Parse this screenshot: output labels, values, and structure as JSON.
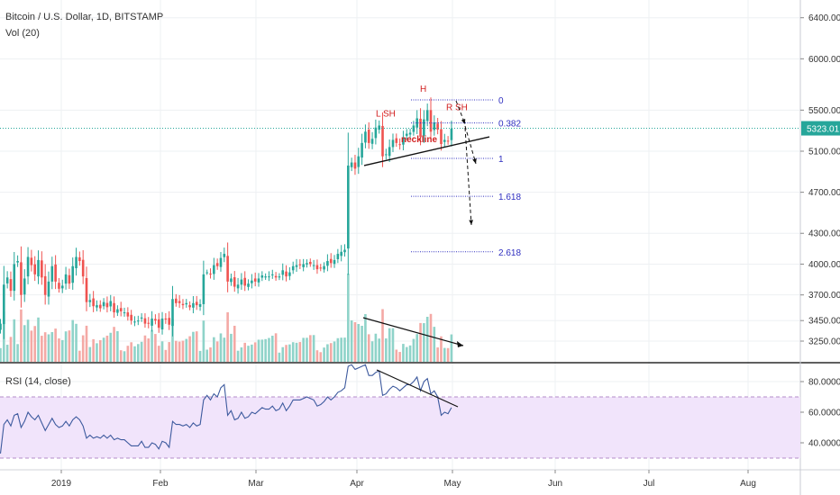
{
  "header": {
    "title": "Bitcoin / U.S. Dollar, 1D, BITSTAMP",
    "volume_legend": "Vol (20)",
    "rsi_legend": "RSI (14, close)"
  },
  "colors": {
    "up": "#26a69a",
    "down": "#ef5350",
    "vol_up": "#8fd3c9",
    "vol_down": "#f4a9a5",
    "price_line": "#26a69a",
    "price_tag_bg": "#26a69a",
    "fib": "#3030c0",
    "annotation_red": "#d11f1f",
    "rsi_line": "#3d5a9e",
    "rsi_band": "#f1e4fb"
  },
  "price_axis": {
    "ticks": [
      "6400.00",
      "6000.00",
      "5500.00",
      "5100.00",
      "4700.00",
      "4300.00",
      "4000.00",
      "3700.00",
      "3450.00",
      "3250.00"
    ],
    "current_price": "5323.01"
  },
  "rsi_axis": {
    "ticks": [
      "80.0000",
      "60.0000",
      "40.0000"
    ]
  },
  "time_axis": {
    "labels": [
      "2019",
      "Feb",
      "Mar",
      "Apr",
      "May",
      "Jun",
      "Jul",
      "Aug"
    ]
  },
  "annotations": {
    "head": "H",
    "left_shoulder": "L SH",
    "right_shoulder": "R SH",
    "neckline": "neckline"
  },
  "fib_levels": [
    "0",
    "0.382",
    "1",
    "1.618",
    "2.618"
  ],
  "chart_data": {
    "type": "candlestick",
    "title": "Bitcoin / U.S. Dollar, 1D, BITSTAMP",
    "x_range": [
      "Dec 2018",
      "Aug 2019"
    ],
    "price_ylim": [
      3130,
      6530
    ],
    "rsi_ylim": [
      25,
      95
    ],
    "rsi_bands": [
      30,
      70
    ],
    "candles_close": [
      3420,
      3800,
      3870,
      3740,
      4000,
      4030,
      3700,
      3860,
      4070,
      3990,
      3900,
      4040,
      3870,
      3700,
      3830,
      3980,
      3830,
      3760,
      3790,
      3900,
      3810,
      3980,
      4070,
      4030,
      3880,
      3630,
      3650,
      3590,
      3600,
      3570,
      3630,
      3580,
      3640,
      3530,
      3560,
      3540,
      3530,
      3490,
      3450,
      3440,
      3450,
      3480,
      3420,
      3420,
      3470,
      3450,
      3380,
      3470,
      3460,
      3410,
      3660,
      3620,
      3620,
      3600,
      3620,
      3580,
      3620,
      3600,
      3610,
      3900,
      3920,
      3900,
      3990,
      3980,
      4060,
      4100,
      3830,
      3860,
      3780,
      3800,
      3850,
      3790,
      3810,
      3840,
      3830,
      3860,
      3890,
      3880,
      3880,
      3900,
      3870,
      3880,
      3940,
      3880,
      3920,
      3980,
      3990,
      3990,
      4000,
      4010,
      4000,
      3990,
      3950,
      3960,
      3980,
      4030,
      4010,
      4040,
      4100,
      4120,
      4140,
      4960,
      4990,
      4930,
      5050,
      5180,
      5290,
      5180,
      5220,
      5330,
      5350,
      5050,
      5070,
      5140,
      5210,
      5180,
      5160,
      5230,
      5270,
      5280,
      5350,
      5420,
      5240,
      5410,
      5500,
      5290,
      5380,
      5310,
      5170,
      5210,
      5200,
      5320
    ],
    "rsi_values": [
      33,
      52,
      55,
      51,
      58,
      59,
      50,
      54,
      60,
      57,
      55,
      58,
      53,
      48,
      52,
      56,
      52,
      50,
      51,
      54,
      51,
      55,
      57,
      55,
      51,
      43,
      45,
      43,
      44,
      43,
      45,
      43,
      45,
      42,
      43,
      42,
      42,
      40,
      38,
      38,
      38,
      41,
      37,
      37,
      40,
      39,
      36,
      41,
      40,
      37,
      54,
      52,
      52,
      51,
      52,
      50,
      53,
      51,
      52,
      68,
      71,
      68,
      72,
      70,
      76,
      78,
      58,
      61,
      55,
      56,
      60,
      56,
      57,
      60,
      59,
      61,
      63,
      62,
      62,
      64,
      61,
      62,
      66,
      61,
      64,
      68,
      68,
      68,
      69,
      70,
      69,
      68,
      64,
      65,
      67,
      70,
      68,
      70,
      73,
      74,
      76,
      90,
      91,
      88,
      89,
      90,
      91,
      84,
      84,
      86,
      87,
      71,
      72,
      75,
      77,
      76,
      74,
      76,
      78,
      78,
      80,
      83,
      74,
      80,
      82,
      72,
      74,
      70,
      58,
      60,
      59,
      63
    ],
    "head_and_shoulders": {
      "left_shoulder_price": 5350,
      "head_price": 5500,
      "right_shoulder_price": 5410,
      "neckline_price": [
        4960,
        5240
      ]
    },
    "fibonacci": [
      {
        "level": "0",
        "price": 5600
      },
      {
        "level": "0.382",
        "price": 5375
      },
      {
        "level": "1",
        "price": 5030
      },
      {
        "level": "1.618",
        "price": 4660
      },
      {
        "level": "2.618",
        "price": 4120
      }
    ]
  }
}
